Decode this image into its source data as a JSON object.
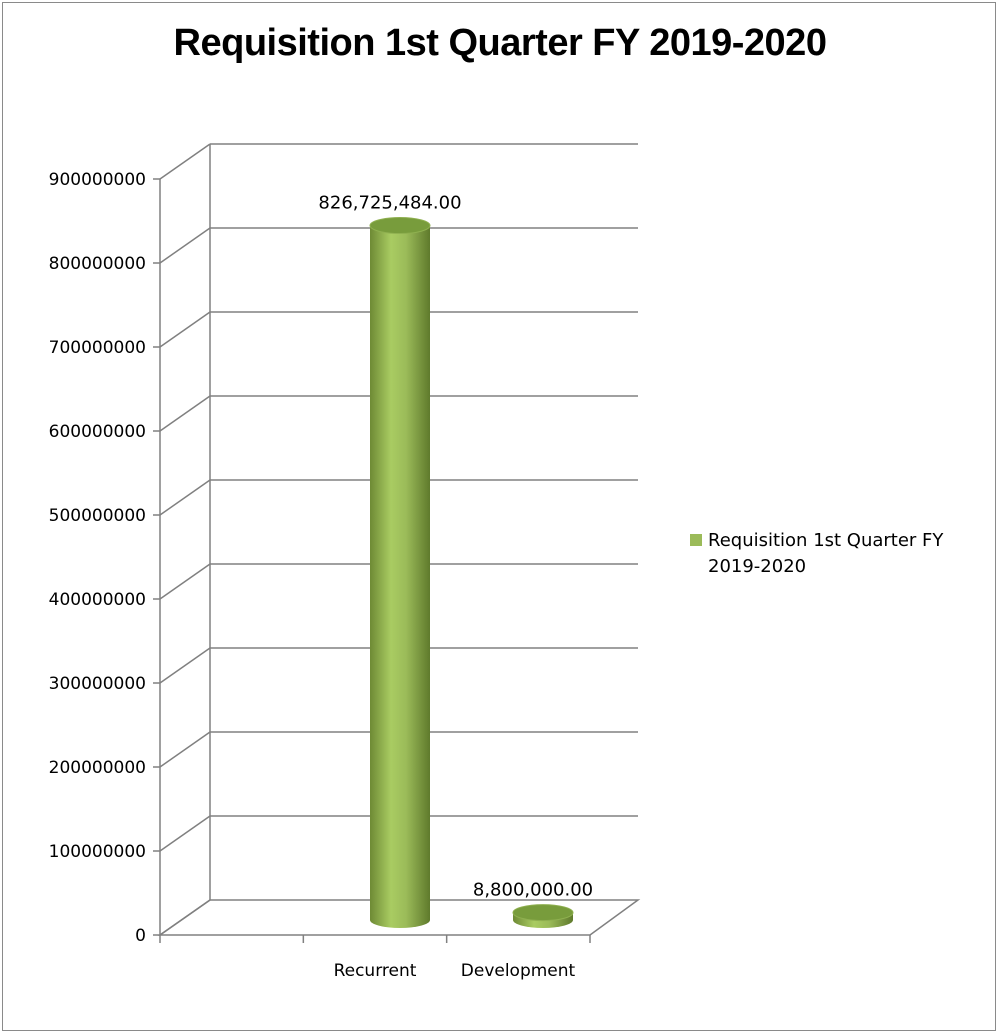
{
  "chart_data": {
    "type": "bar",
    "title": "Requisition 1st Quarter FY 2019-2020",
    "categories": [
      "Recurrent",
      "Development"
    ],
    "series": [
      {
        "name": "Requisition 1st Quarter FY 2019-2020",
        "values": [
          826725484.0,
          8800000.0
        ],
        "data_labels": [
          "826,725,484.00",
          "8,800,000.00"
        ]
      }
    ],
    "y_ticks": [
      "0",
      "100000000",
      "200000000",
      "300000000",
      "400000000",
      "500000000",
      "600000000",
      "700000000",
      "800000000",
      "900000000"
    ],
    "ylim": [
      0,
      900000000
    ],
    "grid": true,
    "legend": "right",
    "style": "3d-cylinder",
    "colors": {
      "bar": "#9bbb59",
      "bar_dark": "#6e8a35",
      "bar_top": "#789c3c",
      "grid": "#808080"
    }
  }
}
